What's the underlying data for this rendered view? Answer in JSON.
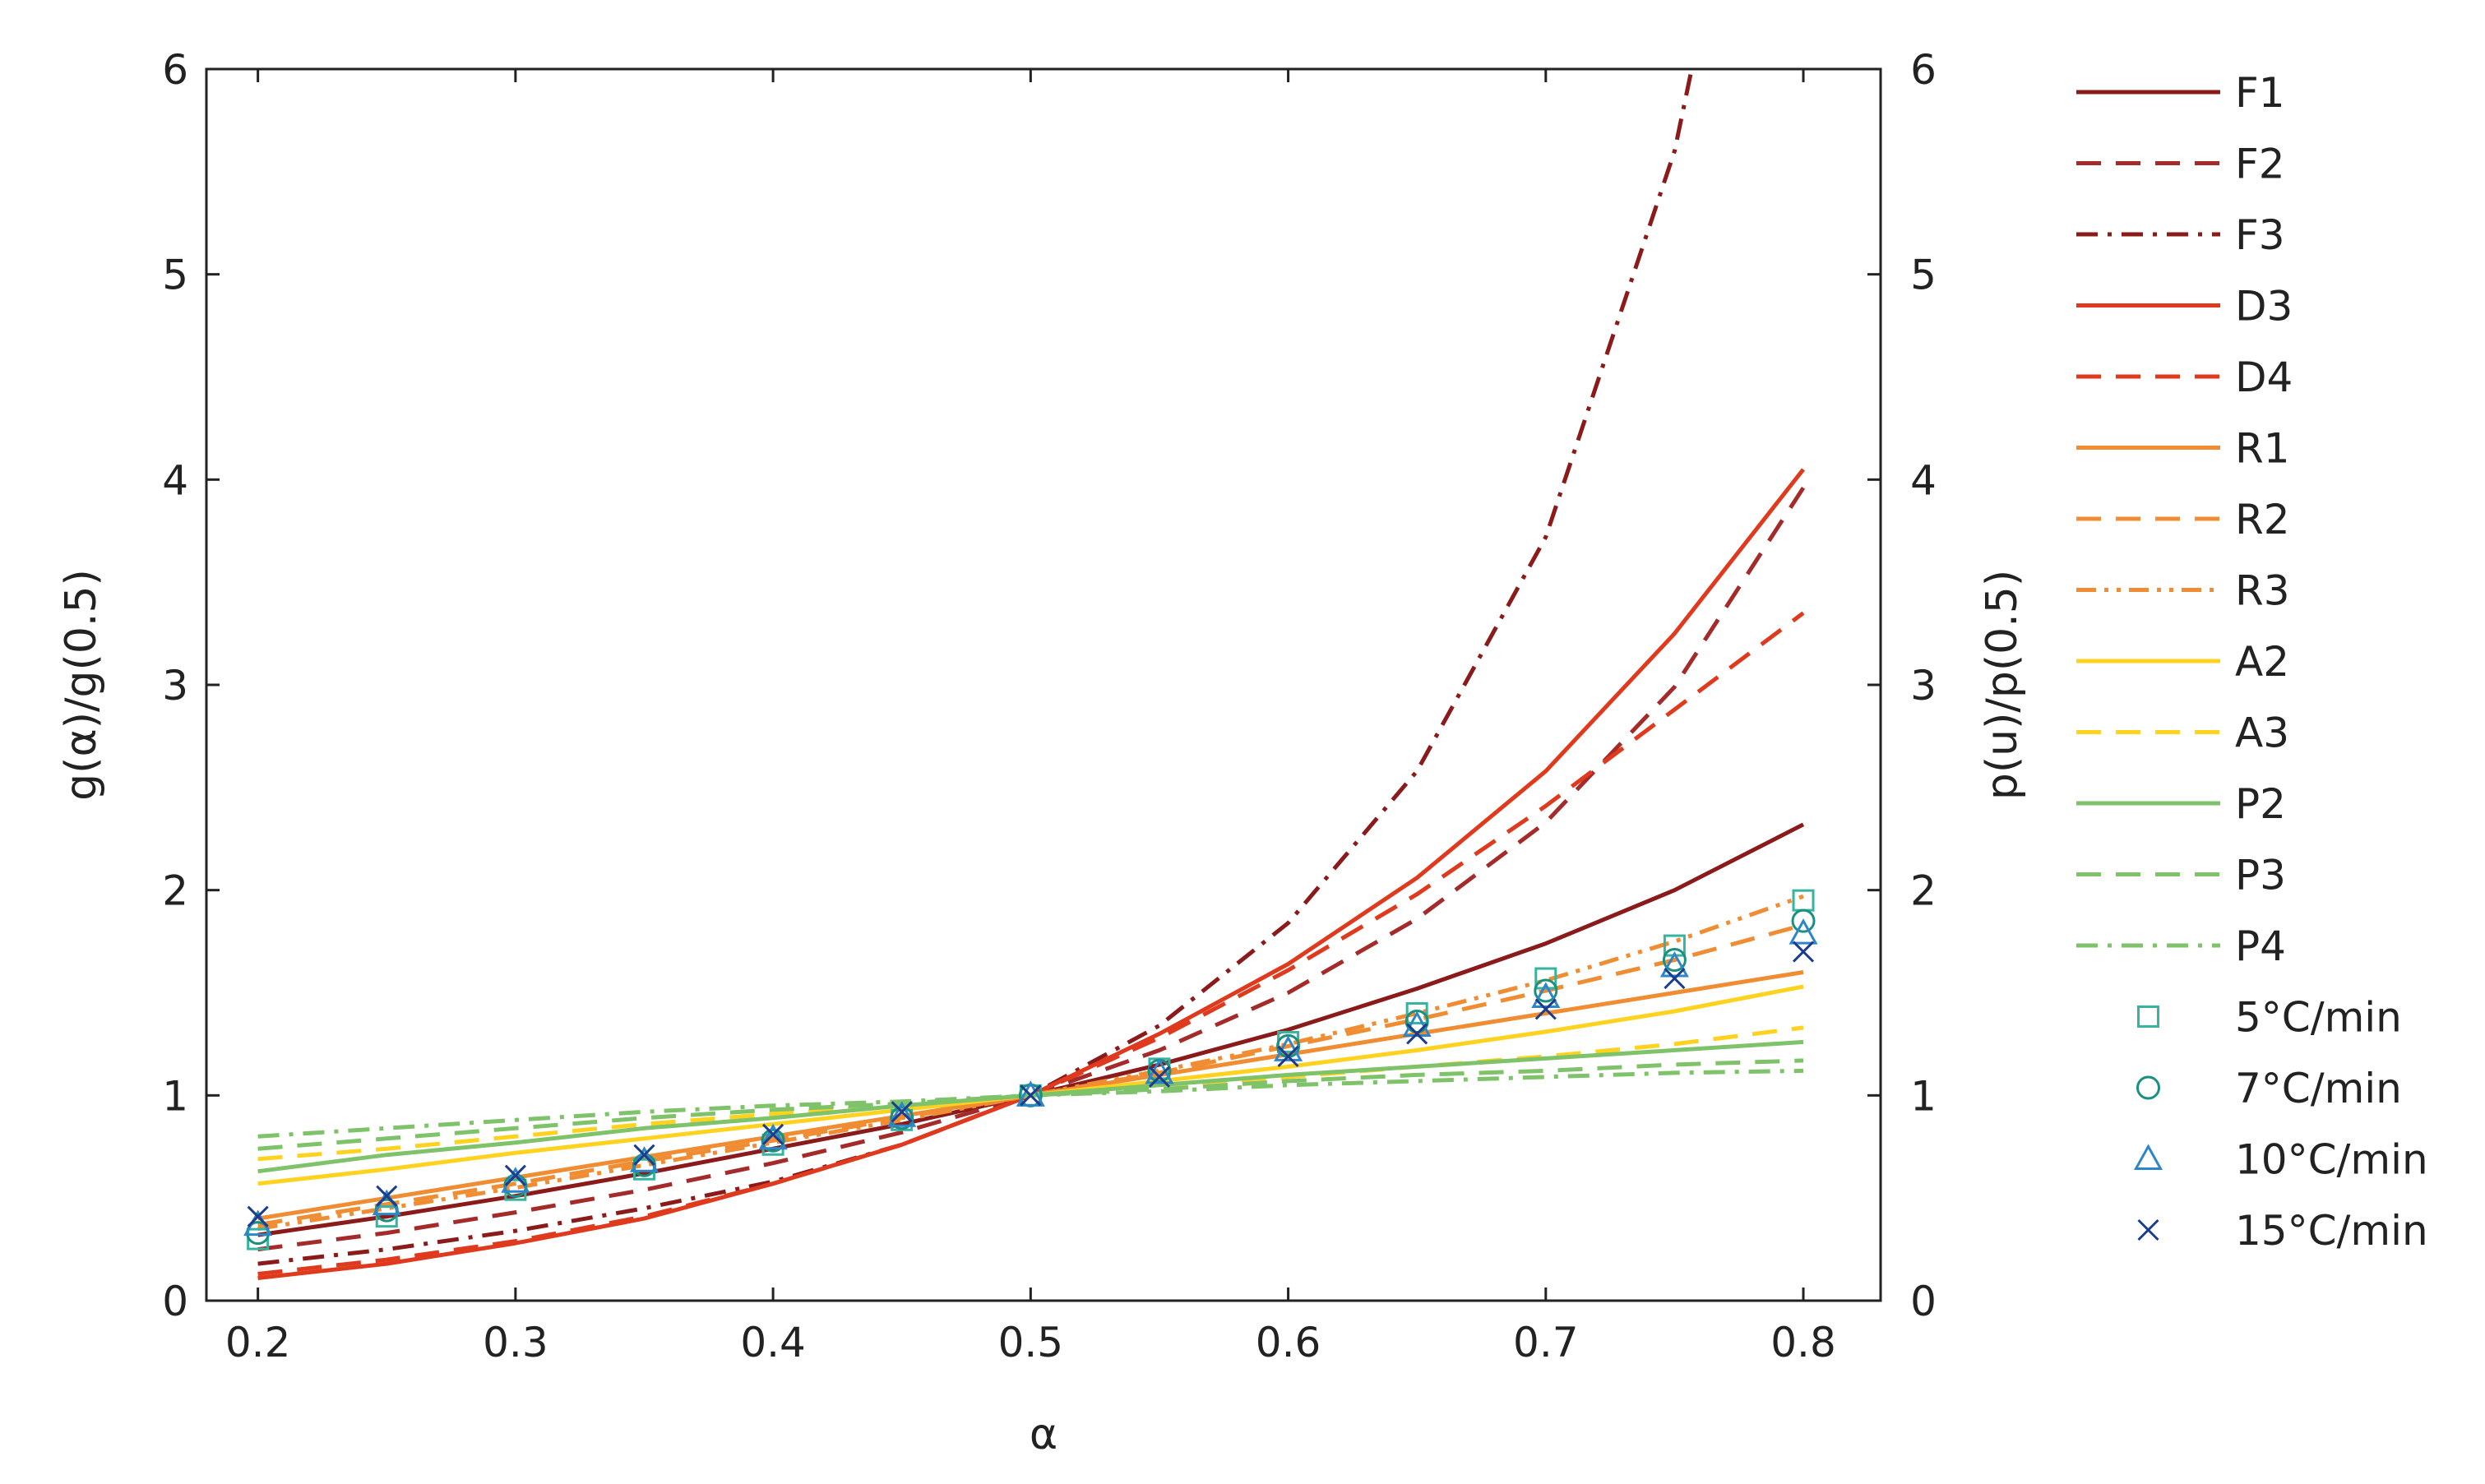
{
  "chart_data": {
    "type": "line",
    "xlabel": "α",
    "ylabel": "g(α)/g(0.5)",
    "y2label": "p(u)/p(0.5)",
    "xlim": [
      0.18,
      0.83
    ],
    "ylim": [
      0,
      6
    ],
    "xticks": [
      0.2,
      0.3,
      0.4,
      0.5,
      0.6,
      0.7,
      0.8
    ],
    "yticks": [
      0,
      1,
      2,
      3,
      4,
      5,
      6
    ],
    "x_tick_labels": [
      "0.2",
      "0.3",
      "0.4",
      "0.5",
      "0.6",
      "0.7",
      "0.8"
    ],
    "y_tick_labels": [
      "0",
      "1",
      "2",
      "3",
      "4",
      "5",
      "6"
    ],
    "y2_tick_labels": [
      "0",
      "1",
      "2",
      "3",
      "4",
      "5",
      "6"
    ],
    "grid": false,
    "legend_position": "right",
    "x": [
      0.2,
      0.25,
      0.3,
      0.35,
      0.4,
      0.45,
      0.5,
      0.55,
      0.6,
      0.65,
      0.7,
      0.75,
      0.8
    ],
    "series": [
      {
        "name": "F1",
        "color": "#8b1a1a",
        "dash": "solid",
        "values": [
          0.32,
          0.41,
          0.51,
          0.62,
          0.74,
          0.86,
          1.0,
          1.15,
          1.32,
          1.52,
          1.74,
          2.0,
          2.32
        ]
      },
      {
        "name": "F2",
        "color": "#a52a2a",
        "dash": "dash",
        "values": [
          0.25,
          0.33,
          0.43,
          0.54,
          0.67,
          0.82,
          1.0,
          1.22,
          1.5,
          1.86,
          2.33,
          2.99,
          3.96
        ]
      },
      {
        "name": "F3",
        "color": "#8b1a1a",
        "dash": "dashdot",
        "values": [
          0.18,
          0.25,
          0.34,
          0.45,
          0.58,
          0.76,
          1.0,
          1.34,
          1.84,
          2.58,
          3.72,
          5.6,
          null
        ]
      },
      {
        "name": "D3",
        "color": "#e03a1e",
        "dash": "solid",
        "values": [
          0.11,
          0.18,
          0.28,
          0.4,
          0.57,
          0.76,
          1.0,
          1.3,
          1.64,
          2.06,
          2.58,
          3.25,
          4.05
        ]
      },
      {
        "name": "D4",
        "color": "#e03a1e",
        "dash": "dash",
        "values": [
          0.13,
          0.2,
          0.29,
          0.41,
          0.57,
          0.76,
          1.0,
          1.28,
          1.61,
          1.98,
          2.41,
          2.88,
          3.35
        ]
      },
      {
        "name": "R1",
        "color": "#f08c32",
        "dash": "solid",
        "values": [
          0.4,
          0.5,
          0.6,
          0.7,
          0.8,
          0.9,
          1.0,
          1.1,
          1.2,
          1.3,
          1.4,
          1.5,
          1.6
        ]
      },
      {
        "name": "R2",
        "color": "#f08c32",
        "dash": "dash",
        "values": [
          0.37,
          0.47,
          0.57,
          0.68,
          0.78,
          0.89,
          1.0,
          1.11,
          1.24,
          1.37,
          1.51,
          1.66,
          1.83
        ]
      },
      {
        "name": "R3",
        "color": "#f08c32",
        "dash": "dashdotdot",
        "values": [
          0.35,
          0.45,
          0.55,
          0.66,
          0.77,
          0.88,
          1.0,
          1.12,
          1.25,
          1.4,
          1.56,
          1.75,
          1.97
        ]
      },
      {
        "name": "A2",
        "color": "#ffd21e",
        "dash": "solid",
        "values": [
          0.57,
          0.64,
          0.72,
          0.79,
          0.86,
          0.93,
          1.0,
          1.07,
          1.14,
          1.22,
          1.31,
          1.41,
          1.53
        ]
      },
      {
        "name": "A3",
        "color": "#ffd21e",
        "dash": "dash",
        "values": [
          0.69,
          0.74,
          0.8,
          0.86,
          0.91,
          0.95,
          1.0,
          1.05,
          1.09,
          1.14,
          1.19,
          1.25,
          1.33
        ]
      },
      {
        "name": "P2",
        "color": "#7ec26a",
        "dash": "solid",
        "values": [
          0.63,
          0.71,
          0.77,
          0.84,
          0.89,
          0.95,
          1.0,
          1.05,
          1.1,
          1.14,
          1.18,
          1.22,
          1.26
        ]
      },
      {
        "name": "P3",
        "color": "#7ec26a",
        "dash": "dash",
        "values": [
          0.74,
          0.79,
          0.84,
          0.89,
          0.93,
          0.96,
          1.0,
          1.03,
          1.07,
          1.1,
          1.12,
          1.15,
          1.17
        ]
      },
      {
        "name": "P4",
        "color": "#7ec26a",
        "dash": "dashdot",
        "values": [
          0.8,
          0.84,
          0.88,
          0.92,
          0.95,
          0.97,
          1.0,
          1.02,
          1.05,
          1.07,
          1.09,
          1.11,
          1.12
        ]
      },
      {
        "name": "5°C/min",
        "color": "#37b4a0",
        "marker": "square",
        "values": [
          0.3,
          0.41,
          0.54,
          0.64,
          0.76,
          0.88,
          1.0,
          1.13,
          1.26,
          1.4,
          1.57,
          1.73,
          1.95
        ]
      },
      {
        "name": "7°C/min",
        "color": "#1a9080",
        "marker": "circle",
        "values": [
          0.33,
          0.44,
          0.56,
          0.66,
          0.78,
          0.89,
          1.0,
          1.12,
          1.24,
          1.36,
          1.51,
          1.66,
          1.85
        ]
      },
      {
        "name": "10°C/min",
        "color": "#2e86c8",
        "marker": "triangle",
        "values": [
          0.37,
          0.47,
          0.58,
          0.68,
          0.79,
          0.9,
          1.0,
          1.11,
          1.22,
          1.34,
          1.48,
          1.63,
          1.79
        ]
      },
      {
        "name": "15°C/min",
        "color": "#1c3c8c",
        "marker": "x",
        "values": [
          0.41,
          0.51,
          0.61,
          0.71,
          0.81,
          0.92,
          1.0,
          1.09,
          1.19,
          1.3,
          1.42,
          1.57,
          1.7
        ]
      }
    ]
  }
}
